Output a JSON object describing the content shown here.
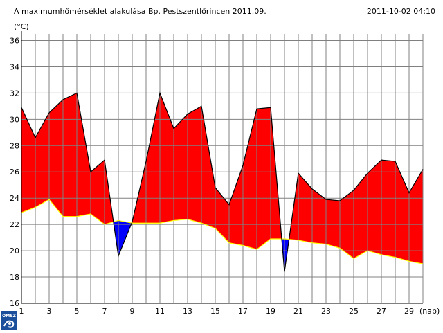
{
  "header": {
    "title": "A maximumhőmérséklet alakulása Bp. Pestszentlőrincen 2011.09.",
    "timestamp": "2011-10-02 04:10"
  },
  "logo": {
    "text": "OMSZ",
    "icon": "omsz-logo"
  },
  "chart_data": {
    "type": "area",
    "title": "A maximumhőmérséklet alakulása Bp. Pestszentlőrincen 2011.09.",
    "ylabel": "(°C)",
    "xlabel": "(nap)",
    "xlim": [
      1,
      30
    ],
    "ylim": [
      16,
      36.5
    ],
    "yticks": [
      16,
      18,
      20,
      22,
      24,
      26,
      28,
      30,
      32,
      34,
      36
    ],
    "xticks": [
      1,
      3,
      5,
      7,
      9,
      11,
      13,
      15,
      17,
      19,
      21,
      23,
      25,
      27,
      29
    ],
    "grid": true,
    "colors": {
      "above_normal": "#ff0000",
      "below_normal": "#0000ff",
      "normal_line": "#ffff00",
      "measured_line": "#000000",
      "grid": "#808080"
    },
    "series": [
      {
        "role": "measured",
        "x": [
          1,
          2,
          3,
          4,
          5,
          6,
          7,
          8,
          9,
          10,
          11,
          12,
          13,
          14,
          15,
          16,
          17,
          18,
          19,
          20,
          21,
          22,
          23,
          24,
          25,
          26,
          27,
          28,
          29,
          30
        ],
        "values": [
          30.9,
          28.6,
          30.5,
          31.5,
          32.0,
          26.0,
          26.9,
          19.6,
          22.2,
          26.8,
          32.0,
          29.3,
          30.4,
          31.0,
          24.8,
          23.5,
          26.5,
          30.8,
          30.9,
          18.4,
          25.9,
          24.7,
          23.9,
          23.8,
          24.6,
          25.9,
          26.9,
          26.8,
          24.4,
          26.2
        ]
      },
      {
        "role": "normal",
        "x": [
          1,
          2,
          3,
          4,
          5,
          6,
          7,
          8,
          9,
          10,
          11,
          12,
          13,
          14,
          15,
          16,
          17,
          18,
          19,
          20,
          21,
          22,
          23,
          24,
          25,
          26,
          27,
          28,
          29,
          30
        ],
        "values": [
          22.9,
          23.3,
          23.9,
          22.6,
          22.6,
          22.8,
          22.0,
          22.3,
          22.1,
          22.1,
          22.1,
          22.3,
          22.4,
          22.1,
          21.7,
          20.6,
          20.4,
          20.1,
          20.9,
          20.9,
          20.8,
          20.6,
          20.5,
          20.2,
          19.4,
          20.0,
          19.7,
          19.5,
          19.2,
          19.0
        ]
      }
    ]
  }
}
